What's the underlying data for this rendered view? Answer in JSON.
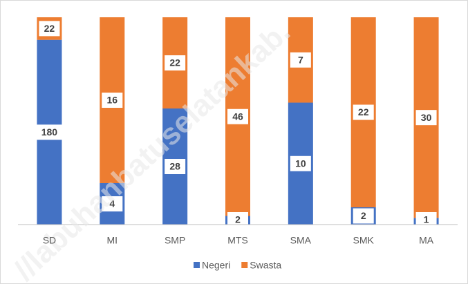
{
  "chart_data": {
    "type": "bar",
    "stacking": "percent",
    "categories": [
      "SD",
      "MI",
      "SMP",
      "MTS",
      "SMA",
      "SMK",
      "MA"
    ],
    "series": [
      {
        "name": "Negeri",
        "color": "#4472c4",
        "values": [
          180,
          4,
          28,
          2,
          10,
          2,
          1
        ]
      },
      {
        "name": "Swasta",
        "color": "#ed7d31",
        "values": [
          22,
          16,
          22,
          46,
          7,
          22,
          30
        ]
      }
    ],
    "legend": "bottom",
    "watermark": "//labuhanbatuselatankab."
  }
}
